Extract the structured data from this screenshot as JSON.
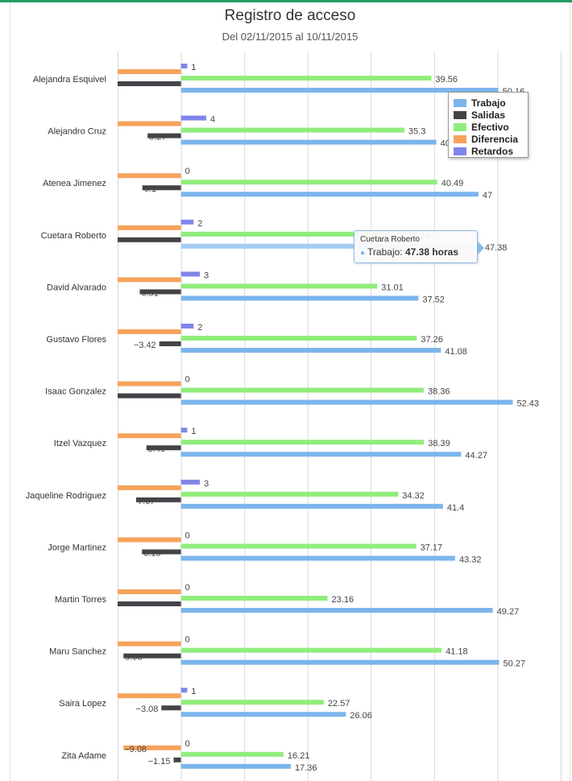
{
  "chart_data": {
    "type": "bar",
    "orientation": "horizontal",
    "title": "Registro de acceso",
    "subtitle": "Del 02/11/2015 al 10/11/2015",
    "categories": [
      "Alejandra Esquivel",
      "Alejandro Cruz",
      "Atenea Jimenez",
      "Cuetara Roberto",
      "David Alvarado",
      "Gustavo Flores",
      "Isaac Gonzalez",
      "Itzel Vazquez",
      "Jaqueline Rodriguez",
      "Jorge Martinez",
      "Martin Torres",
      "Maru Sanchez",
      "Saira Lopez",
      "Zita Adame"
    ],
    "series": [
      {
        "name": "Retardos",
        "color": "#8085e9",
        "values": [
          1,
          4,
          0,
          2,
          3,
          2,
          0,
          1,
          3,
          0,
          0,
          0,
          1,
          0
        ]
      },
      {
        "name": "Diferencia",
        "color": "#f7a35c",
        "values": [
          -10,
          -10,
          -10,
          -10,
          -10,
          -10,
          -10,
          -10,
          -10,
          -10,
          -10,
          -10,
          -10,
          -9.08
        ]
      },
      {
        "name": "Salidas",
        "color": "#434348",
        "values": [
          -10,
          -5.27,
          -6.1,
          -10,
          -6.51,
          -3.42,
          -10,
          -5.46,
          -7.07,
          -6.15,
          -10,
          -9.08,
          -3.08,
          -1.15
        ]
      },
      {
        "name": "Efectivo",
        "color": "#90ed7d",
        "values": [
          39.56,
          35.3,
          40.49,
          35.24,
          31.01,
          37.26,
          38.36,
          38.39,
          34.32,
          37.17,
          23.16,
          41.18,
          22.57,
          16.21
        ]
      },
      {
        "name": "Trabajo",
        "color": "#7cb5ec",
        "values": [
          50.16,
          40.35,
          47,
          47.38,
          37.52,
          41.08,
          52.43,
          44.27,
          41.4,
          43.32,
          49.27,
          50.27,
          26.06,
          17.36
        ]
      }
    ],
    "data_labels": {
      "Retardos": [
        "1",
        "4",
        "0",
        "2",
        "3",
        "2",
        "0",
        "1",
        "3",
        "0",
        "0",
        "0",
        "1",
        "0"
      ],
      "Diferencia": [
        "",
        "",
        "",
        "",
        "",
        "",
        "",
        "",
        "",
        "",
        "",
        "",
        "",
        "−9.08"
      ],
      "Salidas": [
        "",
        "5.27",
        "6.1",
        "",
        "6.51",
        "−3.42",
        "",
        "5.46",
        "7.07",
        "6.15",
        "",
        "9.08",
        "−3.08",
        "−1.15"
      ],
      "Efectivo": [
        "39.56",
        "35.3",
        "40.49",
        "35.24",
        "31.01",
        "37.26",
        "38.36",
        "38.39",
        "34.32",
        "37.17",
        "23.16",
        "41.18",
        "22.57",
        "16.21"
      ],
      "Trabajo": [
        "50.16",
        "40",
        "47",
        "47.38",
        "37.52",
        "41.08",
        "52.43",
        "44.27",
        "41.4",
        "43.32",
        "49.27",
        "50.27",
        "26.06",
        "17.36"
      ]
    },
    "xlim": [
      -10,
      60
    ],
    "grid": true,
    "legend": {
      "placement": "top-right",
      "items": [
        "Trabajo",
        "Salidas",
        "Efectivo",
        "Diferencia",
        "Retardos"
      ]
    },
    "highlight_index": 3
  },
  "legend_colors": {
    "Trabajo": "#7cb5ec",
    "Salidas": "#434348",
    "Efectivo": "#90ed7d",
    "Diferencia": "#f7a35c",
    "Retardos": "#8085e9"
  },
  "tooltip": {
    "header": "Cuetara Roberto",
    "series": "Trabajo",
    "value": "47.38 horas"
  },
  "colors": {
    "accent_bar": "#1fa160"
  }
}
